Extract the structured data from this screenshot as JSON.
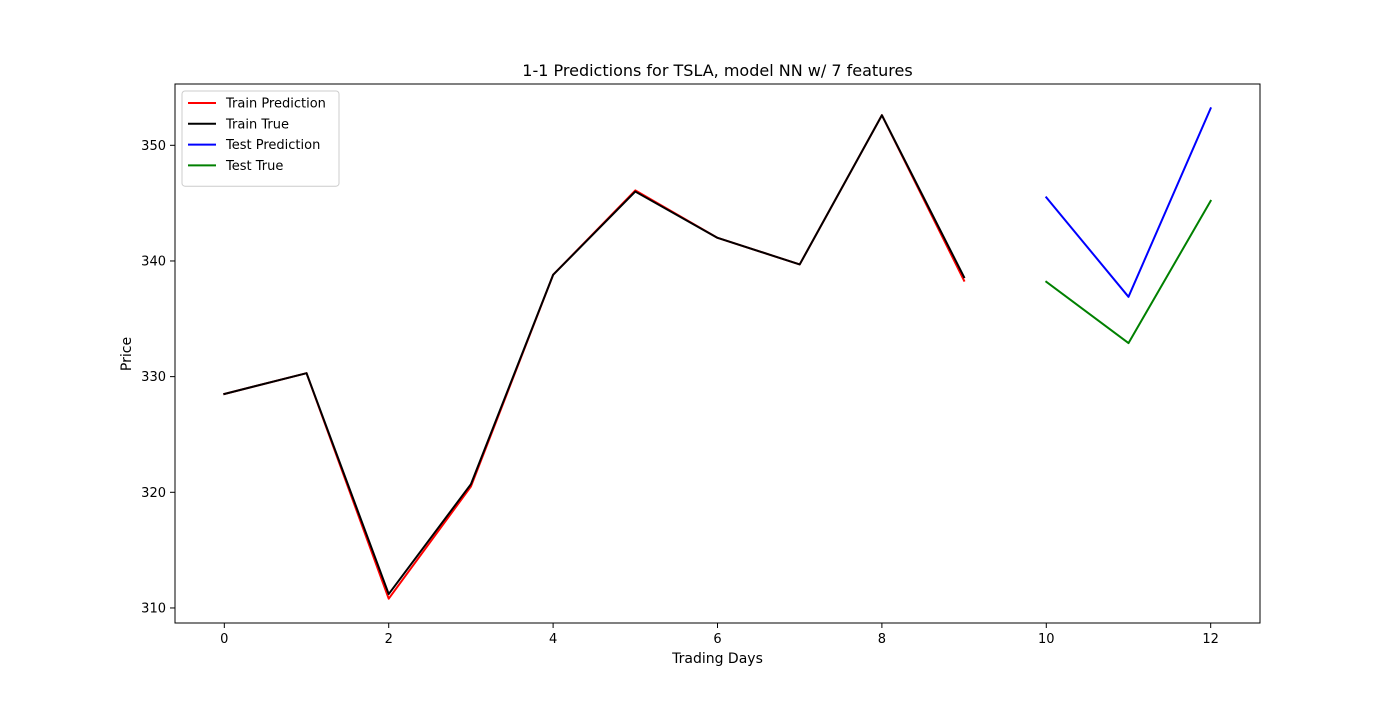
{
  "chart_data": {
    "type": "line",
    "title": "1-1 Predictions for TSLA, model NN w/ 7 features",
    "xlabel": "Trading Days",
    "ylabel": "Price",
    "xlim": [
      -0.6,
      12.6
    ],
    "ylim": [
      308.7,
      355.3
    ],
    "xticks": [
      0,
      2,
      4,
      6,
      8,
      10,
      12
    ],
    "yticks": [
      310,
      320,
      330,
      340,
      350
    ],
    "grid": false,
    "legend_position": "upper-left",
    "series": [
      {
        "name": "Train Prediction",
        "color": "#ff0000",
        "x": [
          0,
          1,
          2,
          3,
          4,
          5,
          6,
          7,
          8,
          9
        ],
        "y": [
          328.5,
          330.3,
          310.8,
          320.5,
          338.8,
          346.1,
          342.0,
          339.7,
          352.6,
          338.3
        ]
      },
      {
        "name": "Train True",
        "color": "#000000",
        "x": [
          0,
          1,
          2,
          3,
          4,
          5,
          6,
          7,
          8,
          9
        ],
        "y": [
          328.5,
          330.3,
          311.2,
          320.7,
          338.8,
          346.0,
          342.0,
          339.7,
          352.6,
          338.6
        ]
      },
      {
        "name": "Test Prediction",
        "color": "#0000ff",
        "x": [
          10,
          11,
          12
        ],
        "y": [
          345.5,
          336.9,
          353.2
        ]
      },
      {
        "name": "Test True",
        "color": "#008000",
        "x": [
          10,
          11,
          12
        ],
        "y": [
          338.2,
          332.9,
          345.2
        ]
      }
    ]
  }
}
